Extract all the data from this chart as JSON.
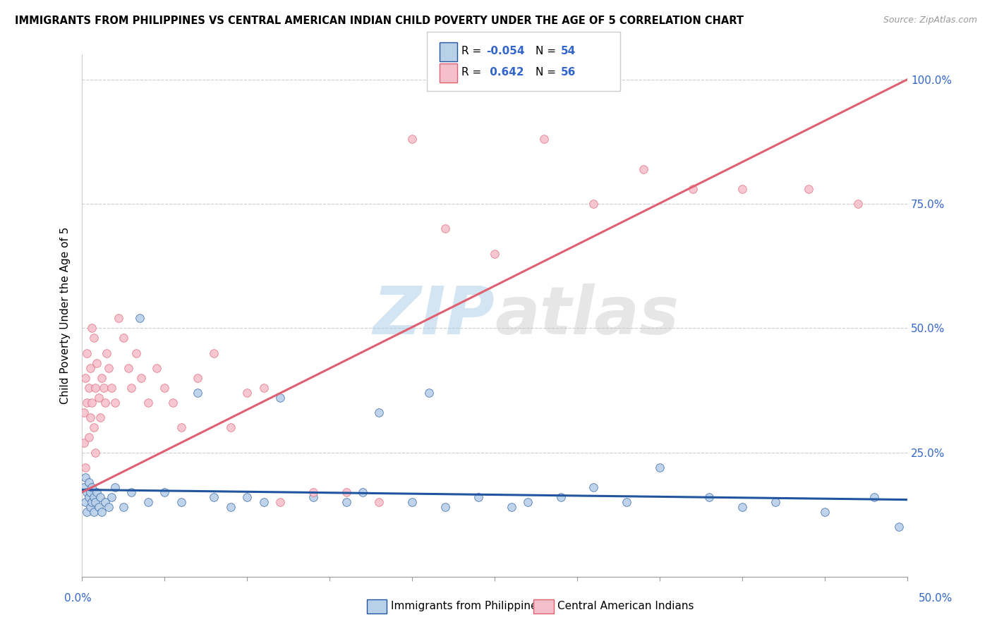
{
  "title": "IMMIGRANTS FROM PHILIPPINES VS CENTRAL AMERICAN INDIAN CHILD POVERTY UNDER THE AGE OF 5 CORRELATION CHART",
  "source": "Source: ZipAtlas.com",
  "ylabel": "Child Poverty Under the Age of 5",
  "legend_blue_label": "Immigrants from Philippines",
  "legend_pink_label": "Central American Indians",
  "blue_color": "#b8d0e8",
  "pink_color": "#f5c0cc",
  "blue_line_color": "#2255a0",
  "pink_line_color": "#e06070",
  "watermark_color": "#d0e8f5",
  "xlim": [
    0.0,
    0.5
  ],
  "ylim": [
    0.0,
    1.05
  ],
  "blue_line_x0": 0.0,
  "blue_line_y0": 0.175,
  "blue_line_x1": 0.5,
  "blue_line_y1": 0.155,
  "pink_line_x0": 0.0,
  "pink_line_x1": 0.5,
  "pink_line_y0": 0.17,
  "pink_line_y1": 1.0,
  "blue_x": [
    0.001,
    0.002,
    0.002,
    0.003,
    0.003,
    0.004,
    0.004,
    0.005,
    0.005,
    0.006,
    0.006,
    0.007,
    0.007,
    0.008,
    0.009,
    0.01,
    0.011,
    0.012,
    0.014,
    0.016,
    0.018,
    0.02,
    0.025,
    0.03,
    0.035,
    0.04,
    0.05,
    0.06,
    0.07,
    0.08,
    0.09,
    0.1,
    0.11,
    0.12,
    0.14,
    0.16,
    0.17,
    0.18,
    0.2,
    0.21,
    0.22,
    0.24,
    0.26,
    0.27,
    0.29,
    0.31,
    0.33,
    0.35,
    0.38,
    0.4,
    0.42,
    0.45,
    0.48,
    0.495
  ],
  "blue_y": [
    0.18,
    0.2,
    0.15,
    0.17,
    0.13,
    0.16,
    0.19,
    0.14,
    0.17,
    0.15,
    0.18,
    0.13,
    0.16,
    0.15,
    0.17,
    0.14,
    0.16,
    0.13,
    0.15,
    0.14,
    0.16,
    0.18,
    0.14,
    0.17,
    0.52,
    0.15,
    0.17,
    0.15,
    0.37,
    0.16,
    0.14,
    0.16,
    0.15,
    0.36,
    0.16,
    0.15,
    0.17,
    0.33,
    0.15,
    0.37,
    0.14,
    0.16,
    0.14,
    0.15,
    0.16,
    0.18,
    0.15,
    0.22,
    0.16,
    0.14,
    0.15,
    0.13,
    0.16,
    0.1
  ],
  "pink_x": [
    0.001,
    0.001,
    0.002,
    0.002,
    0.003,
    0.003,
    0.004,
    0.004,
    0.005,
    0.005,
    0.006,
    0.006,
    0.007,
    0.007,
    0.008,
    0.008,
    0.009,
    0.01,
    0.011,
    0.012,
    0.013,
    0.014,
    0.015,
    0.016,
    0.018,
    0.02,
    0.022,
    0.025,
    0.028,
    0.03,
    0.033,
    0.036,
    0.04,
    0.045,
    0.05,
    0.055,
    0.06,
    0.07,
    0.08,
    0.09,
    0.1,
    0.11,
    0.12,
    0.14,
    0.16,
    0.18,
    0.2,
    0.22,
    0.25,
    0.28,
    0.31,
    0.34,
    0.37,
    0.4,
    0.44,
    0.47
  ],
  "pink_y": [
    0.33,
    0.27,
    0.4,
    0.22,
    0.35,
    0.45,
    0.28,
    0.38,
    0.32,
    0.42,
    0.5,
    0.35,
    0.3,
    0.48,
    0.38,
    0.25,
    0.43,
    0.36,
    0.32,
    0.4,
    0.38,
    0.35,
    0.45,
    0.42,
    0.38,
    0.35,
    0.52,
    0.48,
    0.42,
    0.38,
    0.45,
    0.4,
    0.35,
    0.42,
    0.38,
    0.35,
    0.3,
    0.4,
    0.45,
    0.3,
    0.37,
    0.38,
    0.15,
    0.17,
    0.17,
    0.15,
    0.88,
    0.7,
    0.65,
    0.88,
    0.75,
    0.82,
    0.78,
    0.78,
    0.78,
    0.75
  ]
}
